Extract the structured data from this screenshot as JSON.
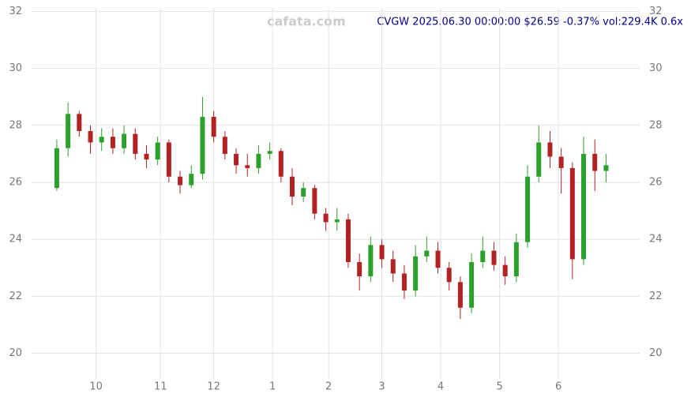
{
  "chart_data": {
    "type": "candlestick",
    "title": "CVGW 2025.06.30 00:00:00 $26.59 -0.37% vol:229.4K 0.6x",
    "watermark": "cafata.com",
    "x": [
      0,
      4,
      8,
      12,
      16,
      20,
      24,
      28,
      32,
      36,
      40,
      44,
      48,
      52,
      56,
      60,
      64,
      68,
      72,
      76,
      80,
      84,
      88,
      92,
      96,
      100,
      104,
      108,
      112,
      116,
      120,
      124,
      128,
      132,
      136,
      140,
      144,
      148,
      152,
      156,
      160,
      164,
      168,
      172,
      176,
      180,
      184,
      188,
      192,
      196
    ],
    "open": [
      25.8,
      27.2,
      28.4,
      27.8,
      27.4,
      27.6,
      27.2,
      27.7,
      27.0,
      26.8,
      27.4,
      26.2,
      25.9,
      26.3,
      28.3,
      27.6,
      27.0,
      26.6,
      26.5,
      27.0,
      27.1,
      26.2,
      25.5,
      25.8,
      24.9,
      24.6,
      24.7,
      23.2,
      22.7,
      23.8,
      23.3,
      22.8,
      22.2,
      23.4,
      23.6,
      23.0,
      22.5,
      21.6,
      23.2,
      23.6,
      23.1,
      22.7,
      23.9,
      26.2,
      27.4,
      26.9,
      26.5,
      23.3,
      27.0,
      26.4
    ],
    "close": [
      27.2,
      28.4,
      27.8,
      27.4,
      27.6,
      27.2,
      27.7,
      27.0,
      26.8,
      27.4,
      26.2,
      25.9,
      26.3,
      28.3,
      27.6,
      27.0,
      26.6,
      26.5,
      27.0,
      27.1,
      26.2,
      25.5,
      25.8,
      24.9,
      24.6,
      24.7,
      23.2,
      22.7,
      23.8,
      23.3,
      22.8,
      22.2,
      23.4,
      23.6,
      23.0,
      22.5,
      21.6,
      23.2,
      23.6,
      23.1,
      22.7,
      23.9,
      26.2,
      27.4,
      26.9,
      26.5,
      23.3,
      27.0,
      26.4,
      26.6
    ],
    "high": [
      27.5,
      28.8,
      28.5,
      28.0,
      27.9,
      27.9,
      28.0,
      27.9,
      27.3,
      27.6,
      27.5,
      26.4,
      26.6,
      29.0,
      28.5,
      27.8,
      27.2,
      27.0,
      27.3,
      27.4,
      27.2,
      26.5,
      26.0,
      25.9,
      25.1,
      25.1,
      24.9,
      23.5,
      24.1,
      24.0,
      23.6,
      23.1,
      23.8,
      24.1,
      23.9,
      23.2,
      22.7,
      23.5,
      24.1,
      23.9,
      23.4,
      24.2,
      26.6,
      28.0,
      27.8,
      27.2,
      26.7,
      27.6,
      27.5,
      27.0
    ],
    "low": [
      25.7,
      26.9,
      27.6,
      27.0,
      27.1,
      27.0,
      27.0,
      26.8,
      26.5,
      26.6,
      26.0,
      25.6,
      25.8,
      26.1,
      27.4,
      26.8,
      26.3,
      26.2,
      26.3,
      26.8,
      26.0,
      25.2,
      25.3,
      24.7,
      24.3,
      24.3,
      23.0,
      22.2,
      22.5,
      23.0,
      22.5,
      21.9,
      22.0,
      23.2,
      22.8,
      22.2,
      21.2,
      21.4,
      23.0,
      22.9,
      22.4,
      22.5,
      23.7,
      26.0,
      26.5,
      25.6,
      22.6,
      23.1,
      25.7,
      26.0
    ],
    "up_color": "#2ca02c",
    "down_color": "#b22222",
    "xlim": [
      -9,
      208
    ],
    "xticks": [
      {
        "value": 14,
        "label": "10"
      },
      {
        "value": 37,
        "label": "11"
      },
      {
        "value": 56,
        "label": "12"
      },
      {
        "value": 77,
        "label": "1"
      },
      {
        "value": 97,
        "label": "2"
      },
      {
        "value": 116,
        "label": "3"
      },
      {
        "value": 137,
        "label": "4"
      },
      {
        "value": 158,
        "label": "5"
      },
      {
        "value": 179,
        "label": "6"
      }
    ],
    "ylim": [
      19.1,
      32.4
    ],
    "yticks": [
      20,
      22,
      24,
      26,
      28,
      30,
      32
    ],
    "grid": true
  }
}
